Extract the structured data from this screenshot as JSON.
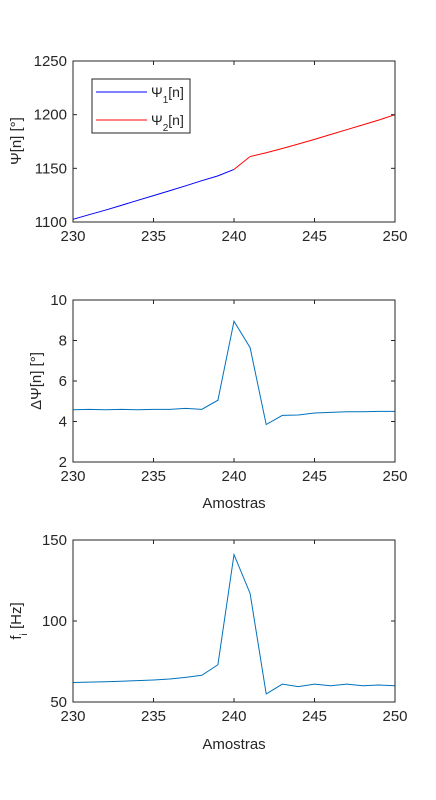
{
  "chart_data": [
    {
      "type": "line",
      "ylabel": "Ψ[n] [°]",
      "xlabel": "",
      "xlim": [
        230,
        250
      ],
      "ylim": [
        1100,
        1250
      ],
      "xticks": [
        230,
        235,
        240,
        245,
        250
      ],
      "yticks": [
        1100,
        1150,
        1200,
        1250
      ],
      "legend_position": "top-left",
      "series": [
        {
          "name": "Ψ1[n]",
          "legend_main": "Ψ",
          "legend_sub": "1",
          "legend_suffix": "[n]",
          "color": "#0000ff",
          "x": [
            230,
            231,
            232,
            233,
            234,
            235,
            236,
            237,
            238,
            239,
            240
          ],
          "y": [
            1102.5,
            1106.8,
            1111.0,
            1115.5,
            1120.1,
            1124.6,
            1129.1,
            1133.7,
            1138.5,
            1143.0,
            1149.0
          ]
        },
        {
          "name": "Ψ2[n]",
          "legend_main": "Ψ",
          "legend_sub": "2",
          "legend_suffix": "[n]",
          "color": "#ff0000",
          "x": [
            240,
            241,
            242,
            243,
            244,
            245,
            246,
            247,
            248,
            249,
            250
          ],
          "y": [
            1149.0,
            1161.0,
            1164.5,
            1168.5,
            1172.7,
            1177.0,
            1181.5,
            1186.0,
            1190.5,
            1195.0,
            1200.0
          ]
        }
      ]
    },
    {
      "type": "line",
      "ylabel": "ΔΨ[n] [°]",
      "xlabel": "Amostras",
      "xlim": [
        230,
        250
      ],
      "ylim": [
        2,
        10
      ],
      "xticks": [
        230,
        235,
        240,
        245,
        250
      ],
      "yticks": [
        2,
        4,
        6,
        8,
        10
      ],
      "series": [
        {
          "color": "#0072bd",
          "x": [
            230,
            231,
            232,
            233,
            234,
            235,
            236,
            237,
            238,
            239,
            240,
            241,
            242,
            243,
            244,
            245,
            246,
            247,
            248,
            249,
            250
          ],
          "y": [
            4.58,
            4.6,
            4.58,
            4.6,
            4.58,
            4.6,
            4.6,
            4.65,
            4.6,
            5.05,
            8.95,
            7.65,
            3.85,
            4.3,
            4.32,
            4.42,
            4.45,
            4.48,
            4.48,
            4.5,
            4.5
          ]
        }
      ]
    },
    {
      "type": "line",
      "ylabel": "fi [Hz]",
      "ylabel_main": "f",
      "ylabel_sub": "i",
      "ylabel_suffix": " [Hz]",
      "xlabel": "Amostras",
      "xlim": [
        230,
        250
      ],
      "ylim": [
        50,
        150
      ],
      "xticks": [
        230,
        235,
        240,
        245,
        250
      ],
      "yticks": [
        50,
        100,
        150
      ],
      "series": [
        {
          "color": "#0072bd",
          "x": [
            230,
            231,
            232,
            233,
            234,
            235,
            236,
            237,
            238,
            239,
            240,
            241,
            242,
            243,
            244,
            245,
            246,
            247,
            248,
            249,
            250
          ],
          "y": [
            62.0,
            62.3,
            62.5,
            62.8,
            63.2,
            63.6,
            64.2,
            65.2,
            66.5,
            73.0,
            141.0,
            117.0,
            55.0,
            61.0,
            59.5,
            61.0,
            60.0,
            61.0,
            60.0,
            60.5,
            60.0
          ]
        }
      ]
    }
  ]
}
